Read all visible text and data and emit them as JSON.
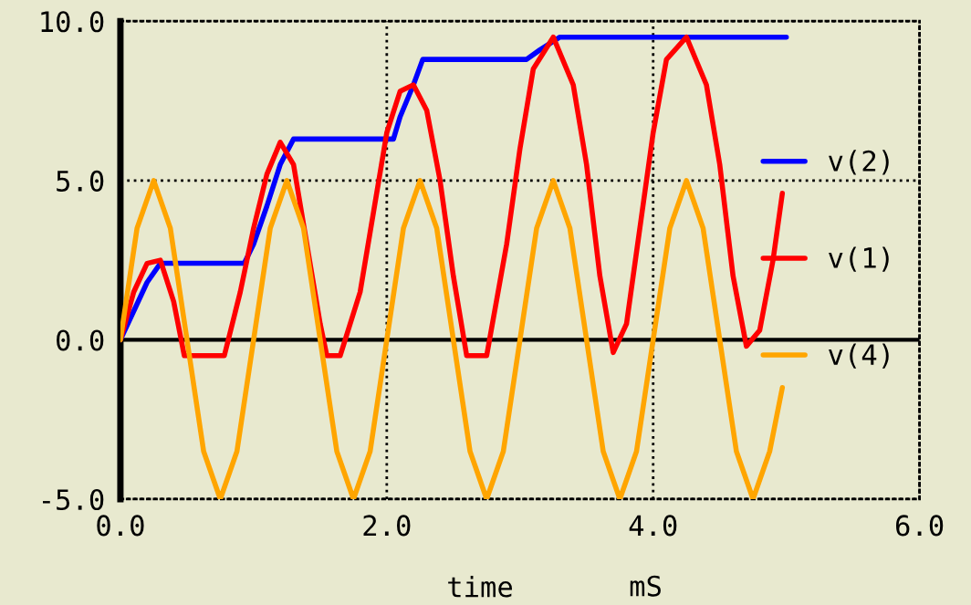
{
  "chart_data": {
    "type": "line",
    "xlabel": "time",
    "annotations": [
      "mS"
    ],
    "xlim": [
      0,
      6
    ],
    "ylim": [
      -5,
      10
    ],
    "xticks": [
      {
        "value": 0,
        "label": "0.0"
      },
      {
        "value": 2,
        "label": "2.0"
      },
      {
        "value": 4,
        "label": "4.0"
      },
      {
        "value": 6,
        "label": "6.0"
      }
    ],
    "yticks": [
      {
        "value": -5,
        "label": "-5.0"
      },
      {
        "value": 0,
        "label": "0.0"
      },
      {
        "value": 5,
        "label": "5.0"
      },
      {
        "value": 10,
        "label": "10.0"
      }
    ],
    "grid": true,
    "legend": "right",
    "line_style": "solid",
    "ref_lines": [
      {
        "axis": "y",
        "value": 0,
        "color": "#000000"
      }
    ],
    "series": [
      {
        "name": "v(2)",
        "color": "#0000ff",
        "x": [
          0,
          0.1,
          0.2,
          0.3,
          0.93,
          1.0,
          1.1,
          1.2,
          1.3,
          2.05,
          2.1,
          2.2,
          2.27,
          3.05,
          3.15,
          3.3,
          5.0
        ],
        "values": [
          0,
          0.9,
          1.8,
          2.4,
          2.4,
          3.0,
          4.2,
          5.5,
          6.3,
          6.3,
          7.0,
          8.0,
          8.8,
          8.8,
          9.1,
          9.5,
          9.5
        ]
      },
      {
        "name": "v(1)",
        "color": "#ff0000",
        "x": [
          0,
          0.1,
          0.2,
          0.3,
          0.4,
          0.48,
          0.78,
          0.9,
          1.0,
          1.1,
          1.2,
          1.3,
          1.4,
          1.5,
          1.55,
          1.65,
          1.8,
          1.9,
          2.0,
          2.1,
          2.2,
          2.3,
          2.4,
          2.5,
          2.6,
          2.75,
          2.9,
          3.0,
          3.1,
          3.25,
          3.4,
          3.5,
          3.6,
          3.7,
          3.8,
          3.9,
          4.0,
          4.1,
          4.25,
          4.4,
          4.5,
          4.6,
          4.7,
          4.8,
          4.9,
          4.97
        ],
        "values": [
          0,
          1.5,
          2.4,
          2.5,
          1.2,
          -0.5,
          -0.5,
          1.5,
          3.5,
          5.2,
          6.2,
          5.5,
          3,
          0.5,
          -0.5,
          -0.5,
          1.5,
          4,
          6.5,
          7.8,
          8.0,
          7.2,
          5,
          2,
          -0.5,
          -0.5,
          3,
          6,
          8.5,
          9.5,
          8,
          5.5,
          2,
          -0.4,
          0.5,
          3.5,
          6.5,
          8.8,
          9.5,
          8,
          5.5,
          2,
          -0.2,
          0.3,
          2.5,
          4.6
        ]
      },
      {
        "name": "v(4)",
        "color": "#ffa500",
        "x": [
          0,
          0.125,
          0.25,
          0.375,
          0.5,
          0.625,
          0.75,
          0.875,
          1,
          1.125,
          1.25,
          1.375,
          1.5,
          1.625,
          1.75,
          1.875,
          2,
          2.125,
          2.25,
          2.375,
          2.5,
          2.625,
          2.75,
          2.875,
          3,
          3.125,
          3.25,
          3.375,
          3.5,
          3.625,
          3.75,
          3.875,
          4,
          4.125,
          4.25,
          4.375,
          4.5,
          4.625,
          4.75,
          4.875,
          4.97
        ],
        "values": [
          0,
          3.5,
          5,
          3.5,
          0,
          -3.5,
          -5,
          -3.5,
          0,
          3.5,
          5,
          3.5,
          0,
          -3.5,
          -5,
          -3.5,
          0,
          3.5,
          5,
          3.5,
          0,
          -3.5,
          -5,
          -3.5,
          0,
          3.5,
          5,
          3.5,
          0,
          -3.5,
          -5,
          -3.5,
          0,
          3.5,
          5,
          3.5,
          0,
          -3.5,
          -5,
          -3.5,
          -1.5
        ]
      }
    ]
  }
}
